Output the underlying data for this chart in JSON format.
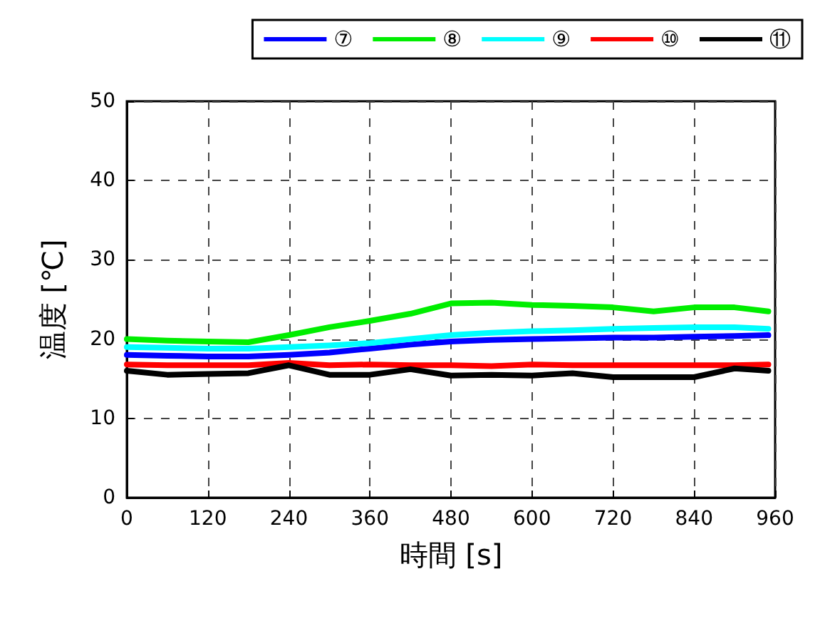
{
  "chart_data": {
    "type": "line",
    "xlabel": "時間 [s]",
    "ylabel": "温度 [℃]",
    "xlim": [
      0,
      960
    ],
    "xticks": [
      0,
      120,
      240,
      360,
      480,
      600,
      720,
      840,
      960
    ],
    "ylim": [
      0,
      50
    ],
    "yticks": [
      0,
      10,
      20,
      30,
      40,
      50
    ],
    "grid": true,
    "legend": "top right",
    "marker": "none",
    "line_style": "solid",
    "x": [
      0,
      60,
      120,
      180,
      240,
      300,
      360,
      420,
      480,
      540,
      600,
      660,
      720,
      780,
      840,
      900,
      950
    ],
    "series": [
      {
        "name": "⑦",
        "color": "#0000ff",
        "values": [
          18,
          17.9,
          17.8,
          17.8,
          18,
          18.3,
          18.8,
          19.3,
          19.7,
          19.9,
          20,
          20.1,
          20.2,
          20.2,
          20.3,
          20.4,
          20.5
        ]
      },
      {
        "name": "⑧",
        "color": "#00ee00",
        "values": [
          20,
          19.8,
          19.7,
          19.6,
          20.5,
          21.5,
          22.3,
          23.2,
          24.5,
          24.6,
          24.3,
          24.2,
          24,
          23.5,
          24,
          24,
          23.5
        ]
      },
      {
        "name": "⑨",
        "color": "#00ffff",
        "values": [
          19,
          18.9,
          18.8,
          18.8,
          19,
          19.2,
          19.5,
          20,
          20.5,
          20.8,
          21,
          21.1,
          21.3,
          21.4,
          21.5,
          21.5,
          21.3
        ]
      },
      {
        "name": "⑩",
        "color": "#ff0000",
        "values": [
          16.8,
          16.7,
          16.7,
          16.7,
          17,
          16.7,
          16.8,
          16.7,
          16.7,
          16.6,
          16.8,
          16.7,
          16.7,
          16.7,
          16.7,
          16.7,
          16.8
        ]
      },
      {
        "name": "⑪",
        "color": "#000000",
        "values": [
          16,
          15.5,
          15.6,
          15.7,
          16.7,
          15.5,
          15.5,
          16.2,
          15.4,
          15.5,
          15.4,
          15.7,
          15.2,
          15.2,
          15.2,
          16.3,
          16
        ]
      }
    ]
  }
}
